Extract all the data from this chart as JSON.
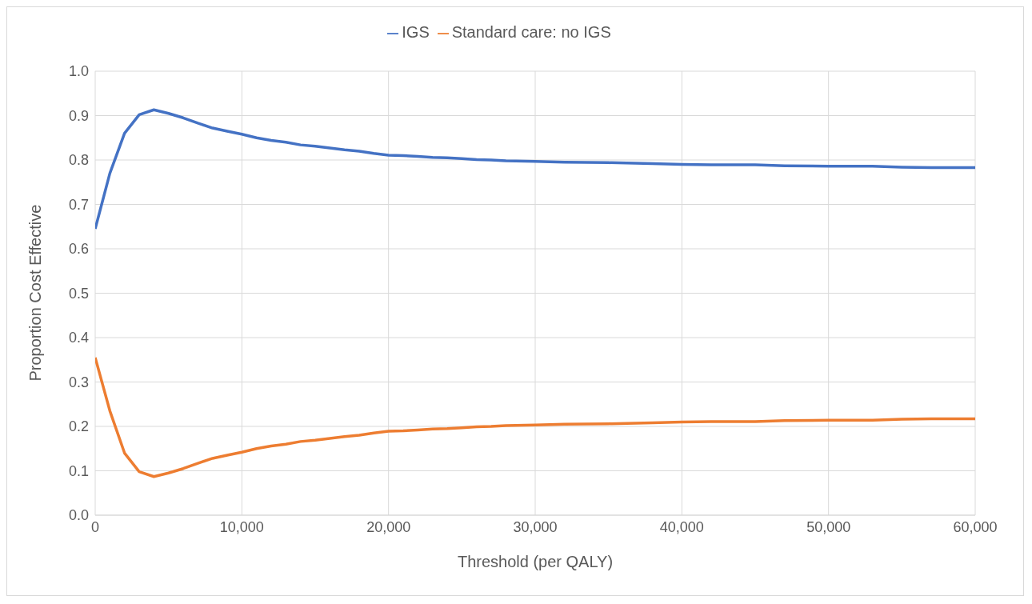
{
  "chart_data": {
    "type": "line",
    "xlabel": "Threshold (per QALY)",
    "ylabel": "Proportion Cost Effective",
    "x": [
      0,
      1000,
      2000,
      3000,
      4000,
      5000,
      6000,
      7000,
      8000,
      9000,
      10000,
      11000,
      12000,
      13000,
      14000,
      15000,
      16000,
      17000,
      18000,
      19000,
      20000,
      21000,
      22000,
      23000,
      24000,
      25000,
      26000,
      27000,
      28000,
      30000,
      32000,
      35000,
      38000,
      40000,
      42000,
      45000,
      47000,
      50000,
      53000,
      55000,
      57000,
      60000
    ],
    "series": [
      {
        "name": "IGS",
        "color": "#4472c4",
        "values": [
          0.645,
          0.77,
          0.86,
          0.902,
          0.913,
          0.905,
          0.895,
          0.883,
          0.872,
          0.865,
          0.858,
          0.85,
          0.844,
          0.84,
          0.834,
          0.831,
          0.827,
          0.823,
          0.82,
          0.815,
          0.811,
          0.81,
          0.808,
          0.806,
          0.805,
          0.803,
          0.801,
          0.8,
          0.798,
          0.797,
          0.795,
          0.794,
          0.792,
          0.79,
          0.789,
          0.789,
          0.787,
          0.786,
          0.786,
          0.784,
          0.783,
          0.783
        ]
      },
      {
        "name": "Standard care: no IGS",
        "color": "#ed7d31",
        "values": [
          0.355,
          0.235,
          0.14,
          0.098,
          0.087,
          0.095,
          0.105,
          0.117,
          0.128,
          0.135,
          0.142,
          0.15,
          0.156,
          0.16,
          0.166,
          0.169,
          0.173,
          0.177,
          0.18,
          0.185,
          0.189,
          0.19,
          0.192,
          0.194,
          0.195,
          0.197,
          0.199,
          0.2,
          0.202,
          0.203,
          0.205,
          0.206,
          0.208,
          0.21,
          0.211,
          0.211,
          0.213,
          0.214,
          0.214,
          0.216,
          0.217,
          0.217
        ]
      }
    ],
    "xlim": [
      0,
      60000
    ],
    "xticks": [
      {
        "value": 0,
        "label": "0"
      },
      {
        "value": 10000,
        "label": "10,000"
      },
      {
        "value": 20000,
        "label": "20,000"
      },
      {
        "value": 30000,
        "label": "30,000"
      },
      {
        "value": 40000,
        "label": "40,000"
      },
      {
        "value": 50000,
        "label": "50,000"
      },
      {
        "value": 60000,
        "label": "60,000"
      }
    ],
    "ylim": [
      0,
      1
    ],
    "yticks": [
      {
        "value": 0,
        "label": "0.0"
      },
      {
        "value": 0.1,
        "label": "0.1"
      },
      {
        "value": 0.2,
        "label": "0.2"
      },
      {
        "value": 0.3,
        "label": "0.3"
      },
      {
        "value": 0.4,
        "label": "0.4"
      },
      {
        "value": 0.5,
        "label": "0.5"
      },
      {
        "value": 0.6,
        "label": "0.6"
      },
      {
        "value": 0.7,
        "label": "0.7"
      },
      {
        "value": 0.8,
        "label": "0.8"
      },
      {
        "value": 0.9,
        "label": "0.9"
      },
      {
        "value": 1,
        "label": "1.0"
      }
    ],
    "grid": true,
    "legend": "top",
    "marker": "none",
    "line_style": "solid"
  }
}
